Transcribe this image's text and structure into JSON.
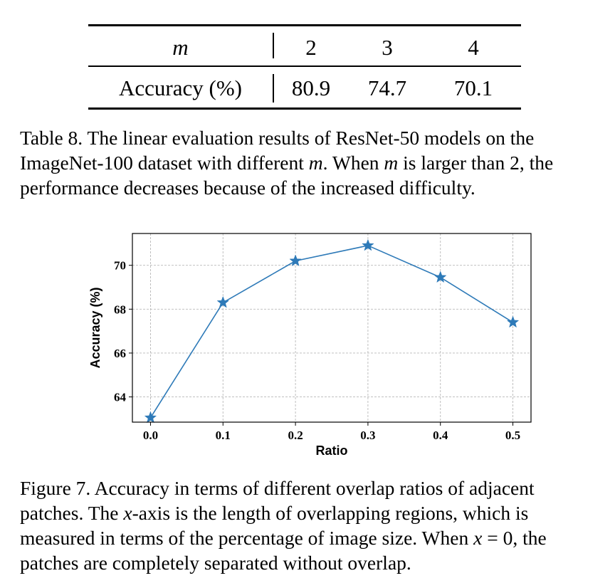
{
  "table": {
    "header": {
      "label": "m",
      "values": [
        "2",
        "3",
        "4"
      ]
    },
    "row": {
      "label": "Accuracy (%)",
      "values": [
        "80.9",
        "74.7",
        "70.1"
      ]
    },
    "caption": {
      "lead": "Table 8. The linear evaluation results of ResNet-50 models on the ImageNet-100 dataset with different ",
      "var1": "m",
      "mid": ". When ",
      "var2": "m",
      "tail": " is larger than 2, the performance decreases because of the increased difficulty."
    }
  },
  "figure": {
    "caption": {
      "lead": "Figure 7. Accuracy in terms of different overlap ratios of adjacent patches. The ",
      "var1": "x",
      "mid": "-axis is the length of overlapping regions, which is measured in terms of the percentage of image size. When ",
      "var2": "x",
      "eq": " = 0",
      "tail": ", the patches are completely separated without overlap."
    }
  },
  "chart_data": {
    "type": "line",
    "x": [
      0.0,
      0.1,
      0.2,
      0.3,
      0.4,
      0.5
    ],
    "x_tick_labels": [
      "0.0",
      "0.1",
      "0.2",
      "0.3",
      "0.4",
      "0.5"
    ],
    "series": [
      {
        "values": [
          63.05,
          68.3,
          70.2,
          70.9,
          69.45,
          67.4
        ]
      }
    ],
    "xlabel": "Ratio",
    "ylabel": "Accuracy (%)",
    "xlim": [
      -0.025,
      0.525
    ],
    "ylim": [
      62.85,
      71.45
    ],
    "y_ticks": [
      64,
      66,
      68,
      70
    ],
    "y_tick_labels": [
      "64",
      "66",
      "68",
      "70"
    ],
    "grid": true,
    "grid_style": "dashed",
    "marker": "star",
    "color": "#2e7ab8"
  }
}
